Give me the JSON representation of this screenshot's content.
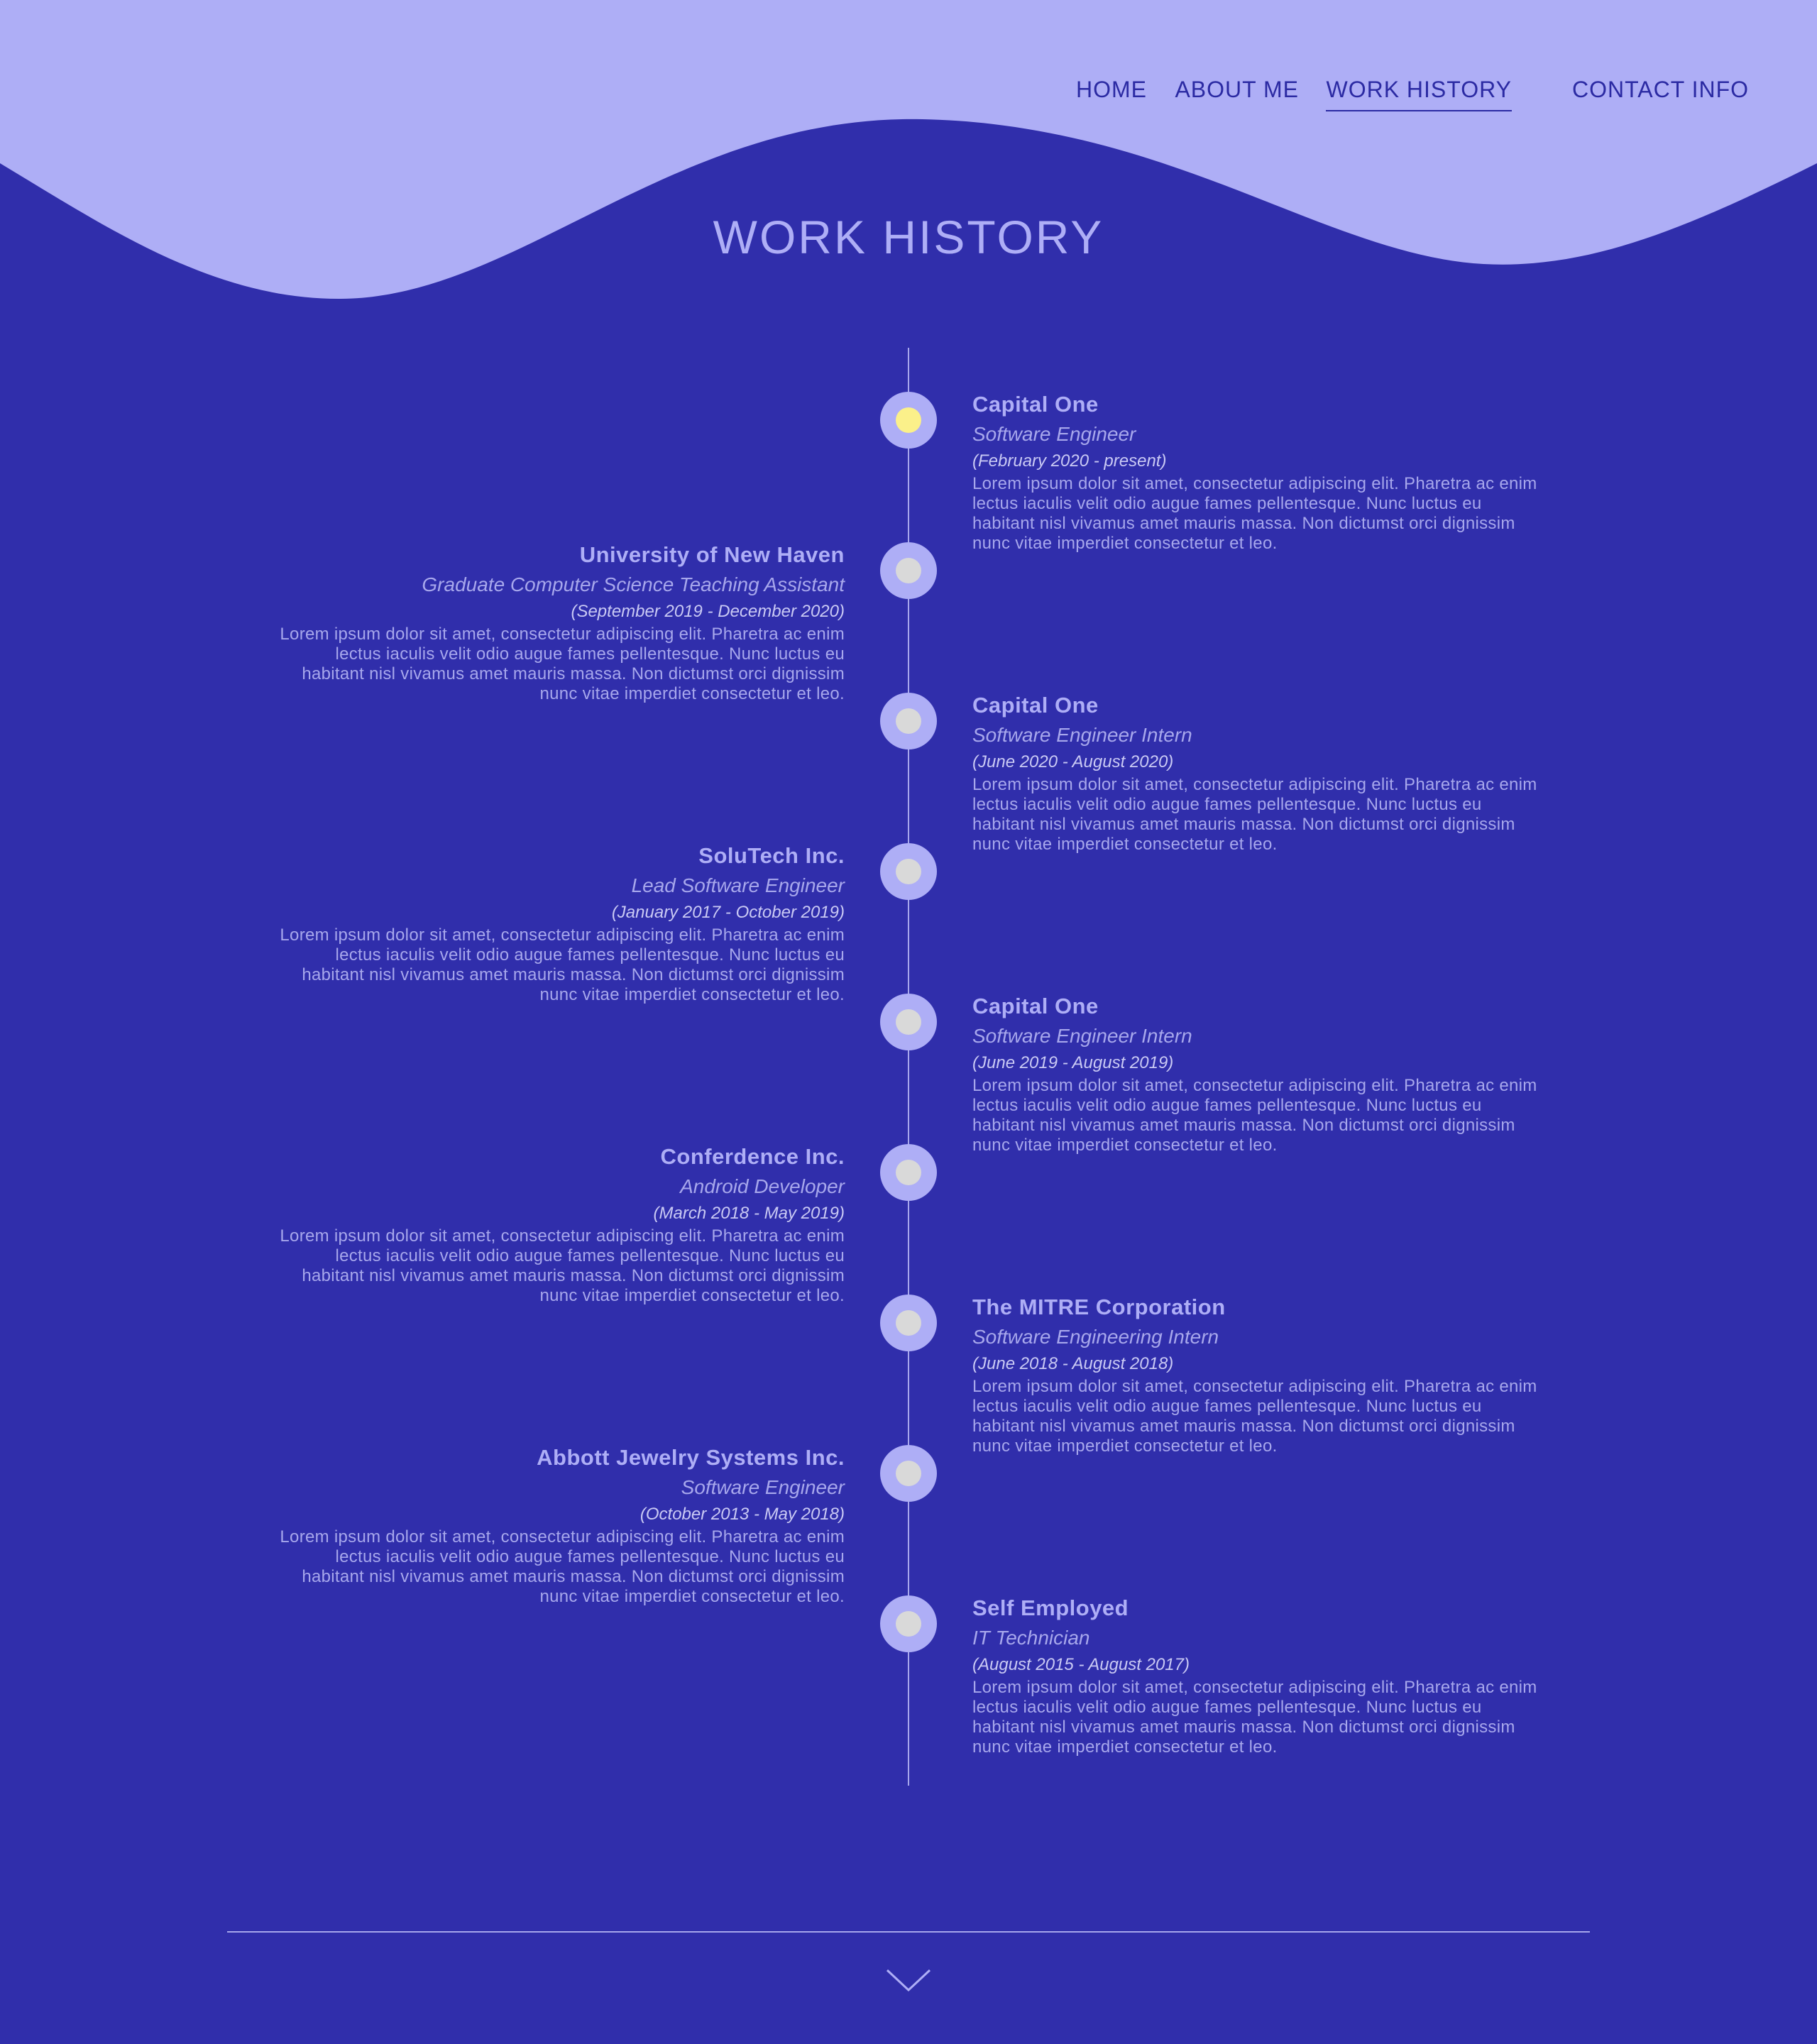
{
  "colors": {
    "background": "#302eab",
    "wave": "#aeaef6",
    "text": "#aeaef6",
    "nav_text": "#2b2aa3",
    "node": "#aeaef6",
    "node_dot": "#d9d9d9",
    "node_dot_current": "#fbf08a"
  },
  "nav": {
    "items": [
      "HOME",
      "ABOUT ME",
      "WORK HISTORY",
      "CONTACT INFO"
    ],
    "active": "WORK HISTORY"
  },
  "page_title": "WORK HISTORY",
  "timeline": [
    {
      "company": "Capital One",
      "role": "Software Engineer",
      "dates": "(February 2020 - present)",
      "current": true,
      "desc": "Lorem ipsum dolor sit amet, consectetur adipiscing elit. Pharetra ac enim lectus iaculis velit odio augue fames pellentesque. Nunc luctus eu habitant nisl vivamus amet mauris massa. Non dictumst orci dignissim nunc vitae imperdiet consectetur et leo."
    },
    {
      "company": "University of New Haven",
      "role": "Graduate Computer Science Teaching Assistant",
      "dates": "(September 2019 - December 2020)",
      "current": false,
      "desc": "Lorem ipsum dolor sit amet, consectetur adipiscing elit. Pharetra ac enim lectus iaculis velit odio augue fames pellentesque. Nunc luctus eu habitant nisl vivamus amet mauris massa. Non dictumst orci dignissim nunc vitae imperdiet consectetur et leo."
    },
    {
      "company": "Capital One",
      "role": "Software Engineer Intern",
      "dates": "(June 2020 - August 2020)",
      "current": false,
      "desc": "Lorem ipsum dolor sit amet, consectetur adipiscing elit. Pharetra ac enim lectus iaculis velit odio augue fames pellentesque. Nunc luctus eu habitant nisl vivamus amet mauris massa. Non dictumst orci dignissim nunc vitae imperdiet consectetur et leo."
    },
    {
      "company": "SoluTech Inc.",
      "role": "Lead Software Engineer",
      "dates": "(January 2017 - October 2019)",
      "current": false,
      "desc": "Lorem ipsum dolor sit amet, consectetur adipiscing elit. Pharetra ac enim lectus iaculis velit odio augue fames pellentesque. Nunc luctus eu habitant nisl vivamus amet mauris massa. Non dictumst orci dignissim nunc vitae imperdiet consectetur et leo."
    },
    {
      "company": "Capital One",
      "role": "Software Engineer Intern",
      "dates": "(June 2019 - August 2019)",
      "current": false,
      "desc": "Lorem ipsum dolor sit amet, consectetur adipiscing elit. Pharetra ac enim lectus iaculis velit odio augue fames pellentesque. Nunc luctus eu habitant nisl vivamus amet mauris massa. Non dictumst orci dignissim nunc vitae imperdiet consectetur et leo."
    },
    {
      "company": "Conferdence Inc.",
      "role": "Android Developer",
      "dates": "(March 2018 - May 2019)",
      "current": false,
      "desc": "Lorem ipsum dolor sit amet, consectetur adipiscing elit. Pharetra ac enim lectus iaculis velit odio augue fames pellentesque. Nunc luctus eu habitant nisl vivamus amet mauris massa. Non dictumst orci dignissim nunc vitae imperdiet consectetur et leo."
    },
    {
      "company": "The MITRE Corporation",
      "role": "Software Engineering Intern",
      "dates": "(June 2018 - August 2018)",
      "current": false,
      "desc": "Lorem ipsum dolor sit amet, consectetur adipiscing elit. Pharetra ac enim lectus iaculis velit odio augue fames pellentesque. Nunc luctus eu habitant nisl vivamus amet mauris massa. Non dictumst orci dignissim nunc vitae imperdiet consectetur et leo."
    },
    {
      "company": "Abbott Jewelry Systems Inc.",
      "role": "Software Engineer",
      "dates": "(October 2013 - May 2018)",
      "current": false,
      "desc": "Lorem ipsum dolor sit amet, consectetur adipiscing elit. Pharetra ac enim lectus iaculis velit odio augue fames pellentesque. Nunc luctus eu habitant nisl vivamus amet mauris massa. Non dictumst orci dignissim nunc vitae imperdiet consectetur et leo."
    },
    {
      "company": "Self Employed",
      "role": "IT Technician",
      "dates": "(August 2015 - August 2017)",
      "current": false,
      "desc": "Lorem ipsum dolor sit amet, consectetur adipiscing elit. Pharetra ac enim lectus iaculis velit odio augue fames pellentesque. Nunc luctus eu habitant nisl vivamus amet mauris massa. Non dictumst orci dignissim nunc vitae imperdiet consectetur et leo."
    }
  ],
  "footer": {
    "scroll_icon": "chevron-down-icon"
  }
}
